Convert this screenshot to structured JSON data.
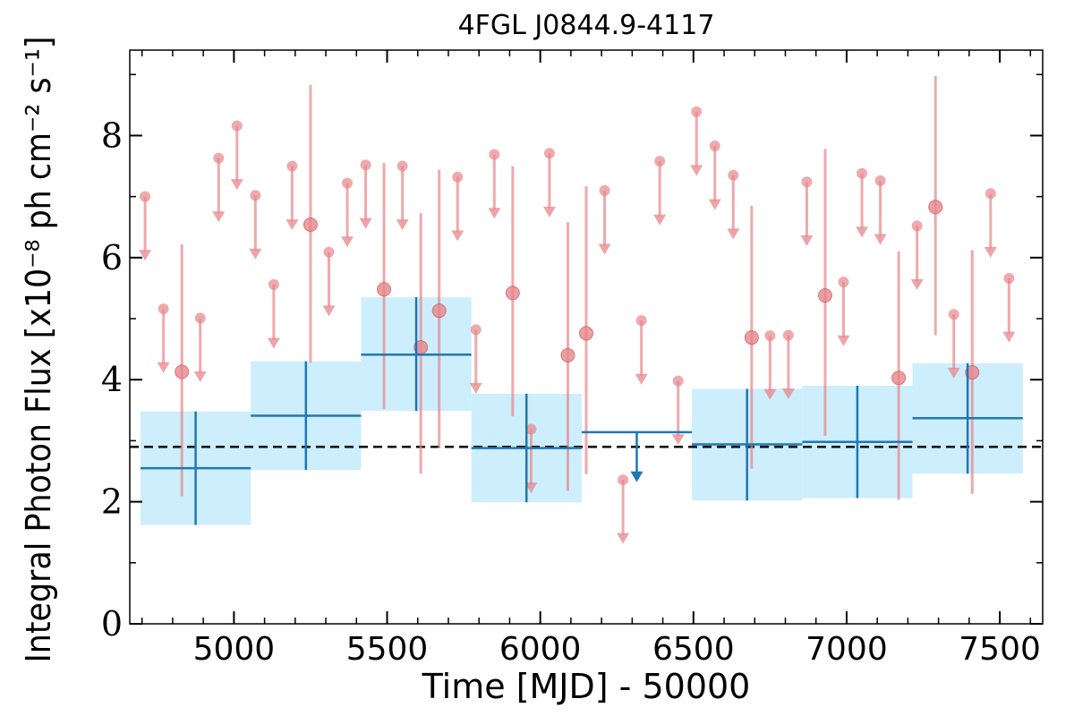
{
  "chart_data": {
    "type": "scatter",
    "title": "4FGL J0844.9-4117",
    "xlabel": "Time [MJD] - 50000",
    "ylabel": "Integral Photon Flux [x10⁻⁸ ph cm⁻² s⁻¹]",
    "xlim": [
      4660,
      7640
    ],
    "ylim": [
      0,
      9.4
    ],
    "x_ticks": [
      5000,
      5500,
      6000,
      6500,
      7000,
      7500
    ],
    "y_ticks": [
      0,
      2,
      4,
      6,
      8
    ],
    "grid": false,
    "reference_level": 2.9,
    "colors": {
      "fine_bins": "#e8868a",
      "coarse_bins": "#1f77b4",
      "coarse_band": "#cdeefc",
      "reference_line": "#000000"
    },
    "coarse_bins": [
      {
        "x": 4875,
        "x_lo": 4695,
        "x_hi": 5055,
        "y": 2.55,
        "y_lo": 1.62,
        "y_hi": 3.48,
        "upper_limit": false
      },
      {
        "x": 5235,
        "x_lo": 5055,
        "x_hi": 5415,
        "y": 3.41,
        "y_lo": 2.52,
        "y_hi": 4.3,
        "upper_limit": false
      },
      {
        "x": 5595,
        "x_lo": 5415,
        "x_hi": 5775,
        "y": 4.41,
        "y_lo": 3.49,
        "y_hi": 5.35,
        "upper_limit": false
      },
      {
        "x": 5955,
        "x_lo": 5775,
        "x_hi": 6135,
        "y": 2.88,
        "y_lo": 1.99,
        "y_hi": 3.77,
        "upper_limit": false
      },
      {
        "x": 6315,
        "x_lo": 6135,
        "x_hi": 6495,
        "y": 3.14,
        "upper_limit": true
      },
      {
        "x": 6675,
        "x_lo": 6495,
        "x_hi": 6855,
        "y": 2.94,
        "y_lo": 2.02,
        "y_hi": 3.85,
        "upper_limit": false
      },
      {
        "x": 7035,
        "x_lo": 6855,
        "x_hi": 7215,
        "y": 2.98,
        "y_lo": 2.06,
        "y_hi": 3.9,
        "upper_limit": false
      },
      {
        "x": 7395,
        "x_lo": 7215,
        "x_hi": 7575,
        "y": 3.37,
        "y_lo": 2.46,
        "y_hi": 4.27,
        "upper_limit": false
      }
    ],
    "fine_bins": [
      {
        "x": 4710,
        "y": 7.0,
        "upper_limit": true
      },
      {
        "x": 4770,
        "y": 5.16,
        "upper_limit": true
      },
      {
        "x": 4830,
        "y": 4.13,
        "y_lo": 2.09,
        "y_hi": 6.22,
        "upper_limit": false
      },
      {
        "x": 4890,
        "y": 5.01,
        "upper_limit": true
      },
      {
        "x": 4950,
        "y": 7.63,
        "upper_limit": true
      },
      {
        "x": 5010,
        "y": 8.16,
        "upper_limit": true
      },
      {
        "x": 5070,
        "y": 7.02,
        "upper_limit": true
      },
      {
        "x": 5130,
        "y": 5.56,
        "upper_limit": true
      },
      {
        "x": 5190,
        "y": 7.5,
        "upper_limit": true
      },
      {
        "x": 5250,
        "y": 6.54,
        "y_lo": 4.28,
        "y_hi": 8.83,
        "upper_limit": false
      },
      {
        "x": 5310,
        "y": 6.09,
        "upper_limit": true
      },
      {
        "x": 5370,
        "y": 7.22,
        "upper_limit": true
      },
      {
        "x": 5430,
        "y": 7.52,
        "upper_limit": true
      },
      {
        "x": 5490,
        "y": 5.48,
        "y_lo": 3.52,
        "y_hi": 7.55,
        "upper_limit": false
      },
      {
        "x": 5550,
        "y": 7.5,
        "upper_limit": true
      },
      {
        "x": 5610,
        "y": 4.53,
        "y_lo": 2.46,
        "y_hi": 6.73,
        "upper_limit": false
      },
      {
        "x": 5670,
        "y": 5.13,
        "y_lo": 2.88,
        "y_hi": 7.44,
        "upper_limit": false
      },
      {
        "x": 5730,
        "y": 7.32,
        "upper_limit": true
      },
      {
        "x": 5790,
        "y": 4.82,
        "upper_limit": true
      },
      {
        "x": 5850,
        "y": 7.69,
        "upper_limit": true
      },
      {
        "x": 5910,
        "y": 5.42,
        "y_lo": 3.4,
        "y_hi": 7.5,
        "upper_limit": false
      },
      {
        "x": 5970,
        "y": 3.19,
        "upper_limit": true
      },
      {
        "x": 6030,
        "y": 7.71,
        "upper_limit": true
      },
      {
        "x": 6090,
        "y": 4.4,
        "y_lo": 2.18,
        "y_hi": 6.58,
        "upper_limit": false
      },
      {
        "x": 6150,
        "y": 4.76,
        "y_lo": 2.45,
        "y_hi": 7.17,
        "upper_limit": false
      },
      {
        "x": 6210,
        "y": 7.1,
        "upper_limit": true
      },
      {
        "x": 6270,
        "y": 2.36,
        "upper_limit": true
      },
      {
        "x": 6330,
        "y": 4.97,
        "upper_limit": true
      },
      {
        "x": 6390,
        "y": 7.58,
        "upper_limit": true
      },
      {
        "x": 6450,
        "y": 3.98,
        "upper_limit": true
      },
      {
        "x": 6510,
        "y": 8.39,
        "upper_limit": true
      },
      {
        "x": 6570,
        "y": 7.83,
        "upper_limit": true
      },
      {
        "x": 6630,
        "y": 7.35,
        "upper_limit": true
      },
      {
        "x": 6690,
        "y": 4.69,
        "y_lo": 2.54,
        "y_hi": 6.85,
        "upper_limit": false
      },
      {
        "x": 6750,
        "y": 4.72,
        "upper_limit": true
      },
      {
        "x": 6810,
        "y": 4.73,
        "upper_limit": true
      },
      {
        "x": 6870,
        "y": 7.24,
        "upper_limit": true
      },
      {
        "x": 6930,
        "y": 5.38,
        "y_lo": 3.08,
        "y_hi": 7.78,
        "upper_limit": false
      },
      {
        "x": 6990,
        "y": 5.6,
        "upper_limit": true
      },
      {
        "x": 7050,
        "y": 7.38,
        "upper_limit": true
      },
      {
        "x": 7110,
        "y": 7.26,
        "upper_limit": true
      },
      {
        "x": 7170,
        "y": 4.03,
        "y_lo": 2.03,
        "y_hi": 6.1,
        "upper_limit": false
      },
      {
        "x": 7230,
        "y": 6.52,
        "upper_limit": true
      },
      {
        "x": 7290,
        "y": 6.83,
        "y_lo": 4.73,
        "y_hi": 8.98,
        "upper_limit": false
      },
      {
        "x": 7350,
        "y": 5.07,
        "upper_limit": true
      },
      {
        "x": 7410,
        "y": 4.12,
        "y_lo": 2.13,
        "y_hi": 6.12,
        "upper_limit": false
      },
      {
        "x": 7470,
        "y": 7.05,
        "upper_limit": true
      },
      {
        "x": 7530,
        "y": 5.66,
        "upper_limit": true
      }
    ]
  }
}
